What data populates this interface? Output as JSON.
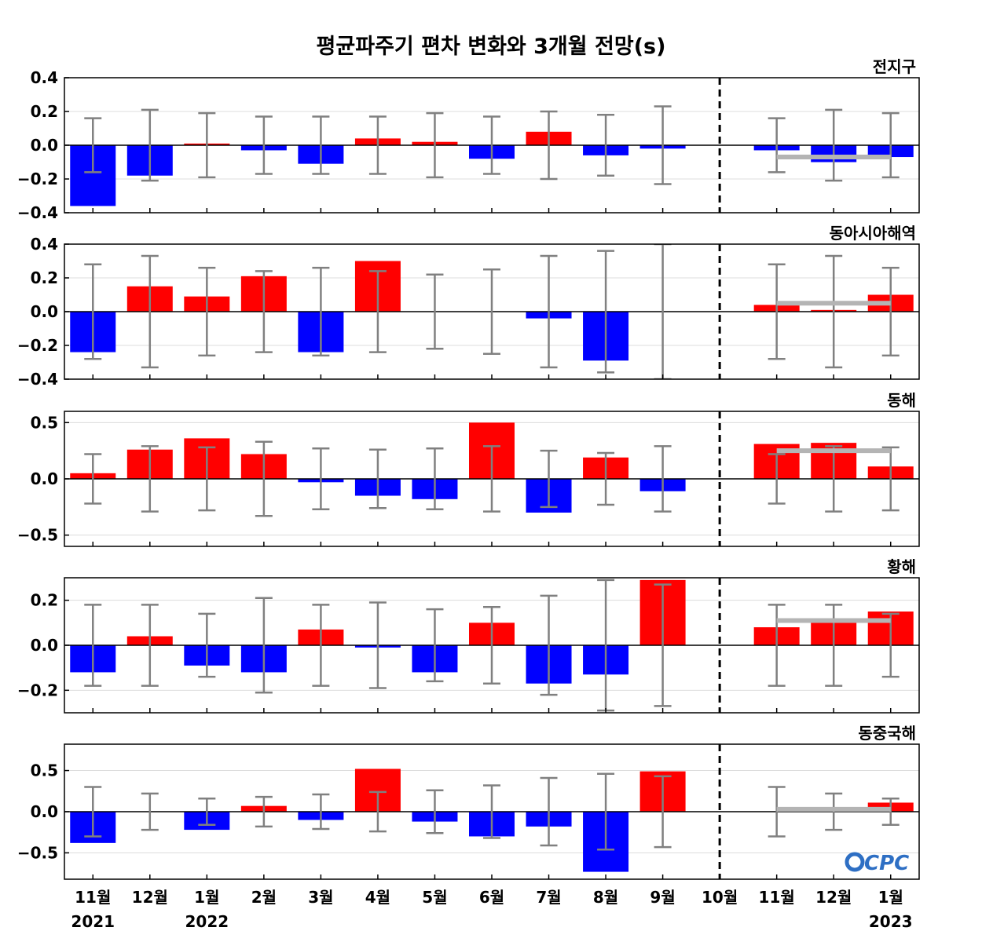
{
  "chart_data": {
    "type": "bar",
    "title": "평균파주기 편차 변화와 3개월 전망(s)",
    "categories": [
      "11월",
      "12월",
      "1월",
      "2월",
      "3월",
      "4월",
      "5월",
      "6월",
      "7월",
      "8월",
      "9월",
      "10월",
      "11월",
      "12월",
      "1월"
    ],
    "year_labels": [
      {
        "index": 0,
        "text": "2021"
      },
      {
        "index": 2,
        "text": "2022"
      },
      {
        "index": 14,
        "text": "2023"
      }
    ],
    "forecast_divider_index": 11,
    "colors": {
      "positive": "#ff0000",
      "negative": "#0000ff",
      "errorbar": "#808080",
      "forecast_mean": "#b4b4b4"
    },
    "logo": "CPC",
    "panels": [
      {
        "name": "전지구",
        "ylim": [
          -0.4,
          0.4
        ],
        "yticks": [
          0.4,
          0.2,
          0.0,
          -0.2,
          -0.4
        ],
        "tick_labels": [
          "0.4",
          "0.2",
          "0.0",
          "−0.2",
          "−0.4"
        ],
        "values": [
          -0.36,
          -0.18,
          0.01,
          -0.03,
          -0.11,
          0.04,
          0.02,
          -0.08,
          0.08,
          -0.06,
          -0.02,
          0.0,
          -0.03,
          -0.1,
          -0.07
        ],
        "error": [
          0.16,
          0.21,
          0.19,
          0.17,
          0.17,
          0.17,
          0.19,
          0.17,
          0.2,
          0.18,
          0.23,
          null,
          0.16,
          0.21,
          0.19
        ],
        "forecast_mean": -0.07
      },
      {
        "name": "동아시아해역",
        "ylim": [
          -0.4,
          0.4
        ],
        "yticks": [
          0.4,
          0.2,
          0.0,
          -0.2,
          -0.4
        ],
        "tick_labels": [
          "0.4",
          "0.2",
          "0.0",
          "−0.2",
          "−0.4"
        ],
        "values": [
          -0.24,
          0.15,
          0.09,
          0.21,
          -0.24,
          0.3,
          0.0,
          0.0,
          -0.04,
          -0.29,
          0.0,
          0.0,
          0.04,
          0.01,
          0.1
        ],
        "error": [
          0.28,
          0.33,
          0.26,
          0.24,
          0.26,
          0.24,
          0.22,
          0.25,
          0.33,
          0.36,
          0.4,
          null,
          0.28,
          0.33,
          0.26
        ],
        "forecast_mean": 0.05
      },
      {
        "name": "동해",
        "ylim": [
          -0.6,
          0.6
        ],
        "yticks": [
          0.5,
          0.0,
          -0.5
        ],
        "tick_labels": [
          "0.5",
          "0.0",
          "−0.5"
        ],
        "values": [
          0.05,
          0.26,
          0.36,
          0.22,
          -0.03,
          -0.15,
          -0.18,
          0.5,
          -0.3,
          0.19,
          -0.11,
          0.0,
          0.31,
          0.32,
          0.11
        ],
        "error": [
          0.22,
          0.29,
          0.28,
          0.33,
          0.27,
          0.26,
          0.27,
          0.29,
          0.25,
          0.23,
          0.29,
          null,
          0.22,
          0.29,
          0.28
        ],
        "forecast_mean": 0.25
      },
      {
        "name": "황해",
        "ylim": [
          -0.3,
          0.3
        ],
        "yticks": [
          0.2,
          0.0,
          -0.2
        ],
        "tick_labels": [
          "0.2",
          "0.0",
          "−0.2"
        ],
        "values": [
          -0.12,
          0.04,
          -0.09,
          -0.12,
          0.07,
          -0.01,
          -0.12,
          0.1,
          -0.17,
          -0.13,
          0.29,
          0.0,
          0.08,
          0.11,
          0.15
        ],
        "error": [
          0.18,
          0.18,
          0.14,
          0.21,
          0.18,
          0.19,
          0.16,
          0.17,
          0.22,
          0.29,
          0.27,
          null,
          0.18,
          0.18,
          0.14
        ],
        "forecast_mean": 0.11
      },
      {
        "name": "동중국해",
        "ylim": [
          -0.82,
          0.82
        ],
        "yticks": [
          0.5,
          0.0,
          -0.5
        ],
        "tick_labels": [
          "0.5",
          "0.0",
          "−0.5"
        ],
        "values": [
          -0.38,
          0.0,
          -0.22,
          0.07,
          -0.1,
          0.52,
          -0.12,
          -0.3,
          -0.18,
          -0.73,
          0.49,
          0.0,
          0.0,
          0.0,
          0.11
        ],
        "error": [
          0.3,
          0.22,
          0.16,
          0.18,
          0.21,
          0.24,
          0.26,
          0.32,
          0.41,
          0.46,
          0.43,
          null,
          0.3,
          0.22,
          0.16
        ],
        "forecast_mean": 0.03
      }
    ]
  }
}
